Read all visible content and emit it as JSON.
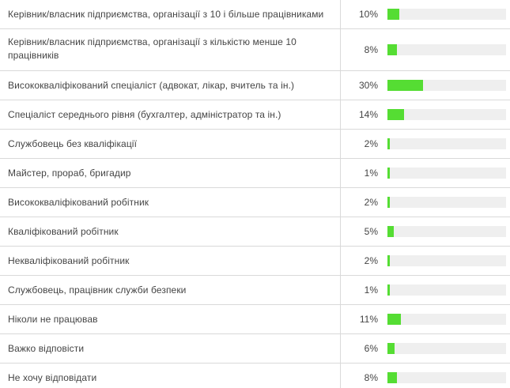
{
  "chart_data": {
    "type": "bar",
    "orientation": "horizontal",
    "bar_color": "#55dd33",
    "track_color": "#efefef",
    "max_value": 100,
    "unit": "%",
    "rows": [
      {
        "label": "Керівник/власник підприємства, організації з 10 і більше працівниками",
        "value": 10,
        "value_label": "10%"
      },
      {
        "label": "Керівник/власник підприємства, організації з кількістю менше 10 працівників",
        "value": 8,
        "value_label": "8%"
      },
      {
        "label": "Висококваліфікований спеціаліст (адвокат, лікар, вчитель та ін.)",
        "value": 30,
        "value_label": "30%"
      },
      {
        "label": "Спеціаліст середнього рівня (бухгалтер, адміністратор та ін.)",
        "value": 14,
        "value_label": "14%"
      },
      {
        "label": "Службовець без кваліфікації",
        "value": 2,
        "value_label": "2%"
      },
      {
        "label": "Майстер, прораб, бригадир",
        "value": 1,
        "value_label": "1%"
      },
      {
        "label": "Висококваліфікований робітник",
        "value": 2,
        "value_label": "2%"
      },
      {
        "label": "Кваліфікований робітник",
        "value": 5,
        "value_label": "5%"
      },
      {
        "label": "Некваліфікований робітник",
        "value": 2,
        "value_label": "2%"
      },
      {
        "label": "Службовець, працівник служби безпеки",
        "value": 1,
        "value_label": "1%"
      },
      {
        "label": "Ніколи не працював",
        "value": 11,
        "value_label": "11%"
      },
      {
        "label": "Важко відповісти",
        "value": 6,
        "value_label": "6%"
      },
      {
        "label": "Не хочу відповідати",
        "value": 8,
        "value_label": "8%"
      }
    ]
  }
}
